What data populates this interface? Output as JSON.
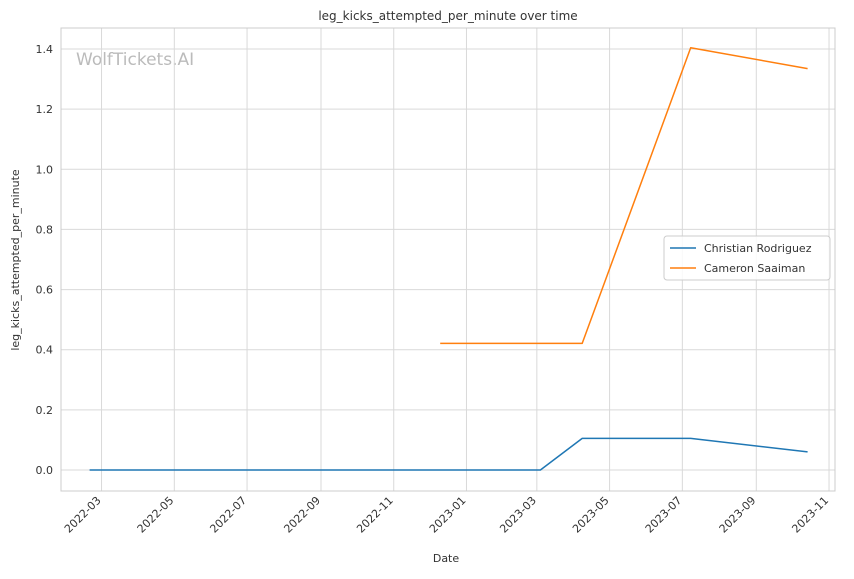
{
  "chart_data": {
    "type": "line",
    "title": "leg_kicks_attempted_per_minute over time",
    "xlabel": "Date",
    "ylabel": "leg_kicks_attempted_per_minute",
    "watermark": "WolfTickets.AI",
    "x_ticks": [
      "2022-03",
      "2022-05",
      "2022-07",
      "2022-09",
      "2022-11",
      "2023-01",
      "2023-03",
      "2023-05",
      "2023-07",
      "2023-09",
      "2023-11"
    ],
    "y_ticks": [
      "0.0",
      "0.2",
      "0.4",
      "0.6",
      "0.8",
      "1.0",
      "1.2",
      "1.4"
    ],
    "xlim": [
      "2022-01-26",
      "2023-11-06"
    ],
    "ylim": [
      -0.07,
      1.47
    ],
    "grid": true,
    "legend_position": "center-right",
    "series": [
      {
        "name": "Christian Rodriguez",
        "color": "#1f77b4",
        "points": [
          {
            "x": "2022-02-19",
            "y": 0.0
          },
          {
            "x": "2023-03-04",
            "y": 0.0
          },
          {
            "x": "2023-04-08",
            "y": 0.105
          },
          {
            "x": "2023-07-08",
            "y": 0.105
          },
          {
            "x": "2023-10-14",
            "y": 0.06
          }
        ]
      },
      {
        "name": "Cameron Saaiman",
        "color": "#ff7f0e",
        "points": [
          {
            "x": "2022-12-10",
            "y": 0.421
          },
          {
            "x": "2023-04-08",
            "y": 0.421
          },
          {
            "x": "2023-07-08",
            "y": 1.404
          },
          {
            "x": "2023-10-14",
            "y": 1.335
          }
        ]
      }
    ]
  }
}
